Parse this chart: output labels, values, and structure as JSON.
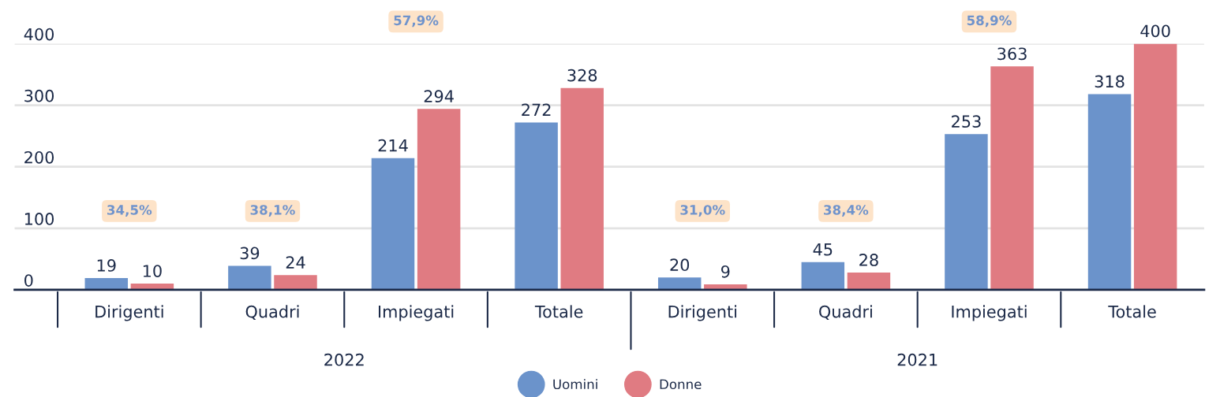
{
  "chart_data": {
    "type": "bar",
    "categories": [
      "Dirigenti",
      "Quadri",
      "Impiegati",
      "Totale",
      "Dirigenti",
      "Quadri",
      "Impiegati",
      "Totale"
    ],
    "series": [
      {
        "name": "Uomini",
        "color": "#6b93cb",
        "values": [
          19,
          39,
          214,
          272,
          20,
          45,
          253,
          318
        ]
      },
      {
        "name": "Donne",
        "color": "#e07b82",
        "values": [
          10,
          24,
          294,
          328,
          9,
          28,
          363,
          400
        ]
      }
    ],
    "ylim": [
      0,
      400
    ],
    "yticks": [
      0,
      100,
      200,
      300,
      400
    ],
    "data_labels": true,
    "grid": "y",
    "legend": "bottom",
    "annotations": [
      "34,5%",
      "38,1%",
      "57,9%",
      "31,0%",
      "38,4%",
      "58,9%",
      "2022",
      "2021"
    ]
  }
}
